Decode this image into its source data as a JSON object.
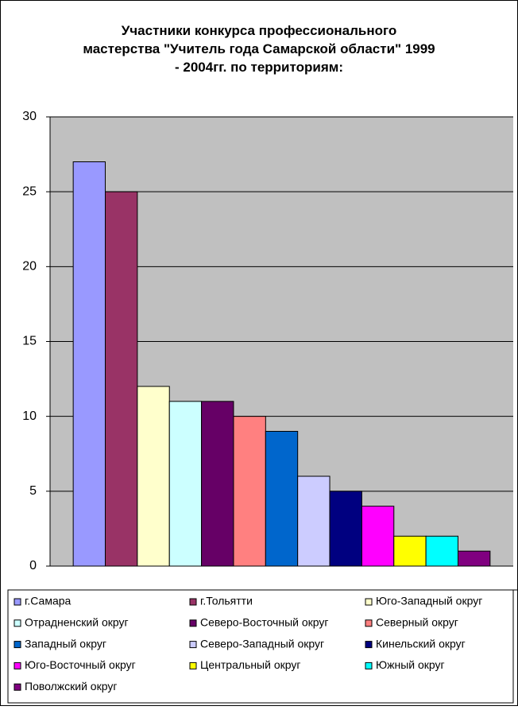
{
  "chart_data": {
    "type": "bar",
    "title": "Участники конкурса профессионального мастерства \"Учитель года Самарской области\" 1999 - 2004гг. по  территориям:",
    "categories": [
      null
    ],
    "series": [
      {
        "name": "г.Самара",
        "color": "#9999ff",
        "values": [
          27
        ]
      },
      {
        "name": "г.Тольятти",
        "color": "#993366",
        "values": [
          25
        ]
      },
      {
        "name": "Юго-Западный округ",
        "color": "#ffffcc",
        "values": [
          12
        ]
      },
      {
        "name": "Отрадненский округ",
        "color": "#ccffff",
        "values": [
          11
        ]
      },
      {
        "name": "Северо-Восточный округ",
        "color": "#660066",
        "values": [
          11
        ]
      },
      {
        "name": "Северный округ",
        "color": "#ff8080",
        "values": [
          10
        ]
      },
      {
        "name": "Западный округ",
        "color": "#0066cc",
        "values": [
          9
        ]
      },
      {
        "name": "Северо-Западный округ",
        "color": "#ccccff",
        "values": [
          6
        ]
      },
      {
        "name": "Кинельский округ",
        "color": "#000080",
        "values": [
          5
        ]
      },
      {
        "name": "Юго-Восточный округ",
        "color": "#ff00ff",
        "values": [
          4
        ]
      },
      {
        "name": "Центральный округ",
        "color": "#ffff00",
        "values": [
          2
        ]
      },
      {
        "name": "Южный округ",
        "color": "#00ffff",
        "values": [
          2
        ]
      },
      {
        "name": "Поволжский округ",
        "color": "#800080",
        "values": [
          1
        ]
      }
    ],
    "ylim": [
      0,
      30
    ],
    "yticks": [
      0,
      5,
      10,
      15,
      20,
      25,
      30
    ],
    "grid": true,
    "plot_background": "#c0c0c0",
    "legend": "bottom"
  }
}
